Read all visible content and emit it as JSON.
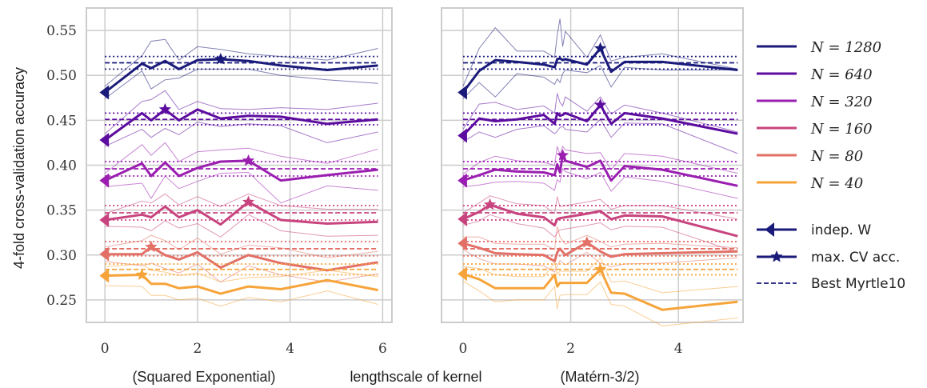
{
  "chart_data": {
    "type": "line",
    "ylabel": "4-fold cross-validation accuracy",
    "xlabel": "lengthscale of kernel",
    "ylim": [
      0.225,
      0.575
    ],
    "yticks": [
      0.25,
      0.3,
      0.35,
      0.4,
      0.45,
      0.5,
      0.55
    ],
    "ytick_labels": [
      "0.25",
      "0.30",
      "0.35",
      "0.40",
      "0.45",
      "0.50",
      "0.55"
    ],
    "grid": true,
    "legend_position": "right",
    "legend_entries": {
      "series_names": [
        "N = 1280",
        "N = 640",
        "N = 320",
        "N = 160",
        "N = 80",
        "N = 40"
      ],
      "indep": "indep. W",
      "maxcv": "max. CV acc.",
      "best": "Best Myrtle10"
    },
    "colors": [
      "#1a1a7a",
      "#5c0d9f",
      "#9a1fb0",
      "#c8447e",
      "#e27066",
      "#f6a43a"
    ],
    "panels": [
      {
        "subtitle": "(Squared Exponential)",
        "xlim": [
          -0.4,
          6.2
        ],
        "xticks": [
          0,
          2,
          4,
          6
        ],
        "xtick_labels": [
          "0",
          "2",
          "4",
          "6"
        ],
        "series": [
          {
            "name": "N = 1280",
            "x": [
              0,
              0.8,
              1.0,
              1.3,
              1.6,
              2.0,
              2.5,
              3.1,
              3.8,
              4.8,
              5.9
            ],
            "values": [
              0.481,
              0.513,
              0.508,
              0.516,
              0.507,
              0.517,
              0.518,
              0.516,
              0.511,
              0.506,
              0.511
            ],
            "upper": [
              0.488,
              0.522,
              0.538,
              0.54,
              0.517,
              0.532,
              0.529,
              0.524,
              0.521,
              0.517,
              0.53
            ],
            "lower": [
              0.474,
              0.505,
              0.485,
              0.495,
              0.497,
              0.507,
              0.507,
              0.507,
              0.5,
              0.495,
              0.491
            ],
            "best": [
              0.521,
              0.514,
              0.507
            ],
            "indep": 0.481,
            "max": [
              2.5,
              0.518
            ]
          },
          {
            "name": "N = 640",
            "x": [
              0,
              0.8,
              1.0,
              1.3,
              1.6,
              2.0,
              2.5,
              3.1,
              3.8,
              4.8,
              5.9
            ],
            "values": [
              0.428,
              0.458,
              0.45,
              0.462,
              0.45,
              0.462,
              0.452,
              0.455,
              0.454,
              0.446,
              0.451
            ],
            "upper": [
              0.435,
              0.471,
              0.473,
              0.483,
              0.462,
              0.471,
              0.463,
              0.462,
              0.464,
              0.462,
              0.469
            ],
            "lower": [
              0.421,
              0.44,
              0.431,
              0.441,
              0.434,
              0.448,
              0.443,
              0.446,
              0.444,
              0.425,
              0.437
            ],
            "best": [
              0.458,
              0.451,
              0.445
            ],
            "indep": 0.428,
            "max": [
              1.3,
              0.462
            ]
          },
          {
            "name": "N = 320",
            "x": [
              0,
              0.8,
              1.0,
              1.3,
              1.6,
              2.0,
              2.5,
              3.1,
              3.8,
              4.8,
              5.9
            ],
            "values": [
              0.383,
              0.402,
              0.388,
              0.403,
              0.388,
              0.397,
              0.404,
              0.405,
              0.383,
              0.389,
              0.395
            ],
            "upper": [
              0.391,
              0.423,
              0.411,
              0.425,
              0.404,
              0.415,
              0.417,
              0.419,
              0.41,
              0.402,
              0.418
            ],
            "lower": [
              0.376,
              0.38,
              0.363,
              0.388,
              0.374,
              0.382,
              0.391,
              0.392,
              0.358,
              0.377,
              0.372
            ],
            "best": [
              0.404,
              0.396,
              0.388
            ],
            "indep": 0.383,
            "max": [
              3.1,
              0.405
            ]
          },
          {
            "name": "N = 160",
            "x": [
              0,
              0.8,
              1.0,
              1.3,
              1.6,
              2.0,
              2.5,
              3.1,
              3.8,
              4.8,
              5.9
            ],
            "values": [
              0.339,
              0.345,
              0.342,
              0.354,
              0.342,
              0.35,
              0.334,
              0.359,
              0.339,
              0.335,
              0.337
            ],
            "upper": [
              0.346,
              0.36,
              0.358,
              0.368,
              0.356,
              0.365,
              0.354,
              0.368,
              0.355,
              0.351,
              0.351
            ],
            "lower": [
              0.332,
              0.331,
              0.327,
              0.338,
              0.33,
              0.335,
              0.32,
              0.345,
              0.327,
              0.321,
              0.322
            ],
            "best": [
              0.355,
              0.347,
              0.339
            ],
            "indep": 0.339,
            "max": [
              3.1,
              0.359
            ]
          },
          {
            "name": "N = 80",
            "x": [
              0,
              0.8,
              1.0,
              1.3,
              1.6,
              2.0,
              2.5,
              3.1,
              3.8,
              4.8,
              5.9
            ],
            "values": [
              0.301,
              0.301,
              0.309,
              0.3,
              0.295,
              0.303,
              0.286,
              0.3,
              0.291,
              0.283,
              0.292
            ],
            "upper": [
              0.309,
              0.316,
              0.322,
              0.316,
              0.306,
              0.319,
              0.301,
              0.311,
              0.308,
              0.297,
              0.304
            ],
            "lower": [
              0.293,
              0.288,
              0.291,
              0.285,
              0.28,
              0.29,
              0.27,
              0.288,
              0.278,
              0.27,
              0.279
            ],
            "best": [
              0.315,
              0.307,
              0.299
            ],
            "indep": 0.301,
            "max": [
              1.0,
              0.309
            ]
          },
          {
            "name": "N = 40",
            "x": [
              0,
              0.8,
              1.0,
              1.3,
              1.6,
              2.0,
              2.5,
              3.1,
              3.8,
              4.8,
              5.9
            ],
            "values": [
              0.277,
              0.278,
              0.268,
              0.268,
              0.263,
              0.265,
              0.257,
              0.265,
              0.262,
              0.272,
              0.261
            ],
            "upper": [
              0.287,
              0.29,
              0.283,
              0.281,
              0.277,
              0.28,
              0.27,
              0.275,
              0.276,
              0.283,
              0.276
            ],
            "lower": [
              0.266,
              0.265,
              0.255,
              0.255,
              0.25,
              0.252,
              0.243,
              0.253,
              0.248,
              0.26,
              0.245
            ],
            "best": [
              0.29,
              0.284,
              0.278
            ],
            "indep": 0.277,
            "max": [
              0.8,
              0.278
            ]
          }
        ]
      },
      {
        "subtitle": "(Matérn-3/2)",
        "xlim": [
          -0.4,
          5.2
        ],
        "xticks": [
          0,
          2,
          4
        ],
        "xtick_labels": [
          "0",
          "2",
          "4"
        ],
        "series": [
          {
            "name": "N = 1280",
            "x": [
              0,
              0.3,
              0.6,
              1.0,
              1.5,
              1.7,
              1.75,
              1.8,
              1.85,
              1.9,
              2.3,
              2.55,
              2.75,
              3.0,
              3.7,
              5.1
            ],
            "values": [
              0.481,
              0.505,
              0.517,
              0.515,
              0.512,
              0.509,
              0.518,
              0.519,
              0.517,
              0.518,
              0.512,
              0.53,
              0.504,
              0.515,
              0.515,
              0.506
            ],
            "upper": [
              0.488,
              0.53,
              0.553,
              0.527,
              0.527,
              0.52,
              0.545,
              0.563,
              0.532,
              0.549,
              0.52,
              0.545,
              0.516,
              0.52,
              0.524,
              0.507
            ],
            "lower": [
              0.474,
              0.492,
              0.476,
              0.502,
              0.498,
              0.49,
              0.496,
              0.492,
              0.502,
              0.506,
              0.503,
              0.511,
              0.487,
              0.509,
              0.506,
              0.506
            ],
            "best": [
              0.521,
              0.514,
              0.507
            ],
            "indep": 0.481,
            "max": [
              2.55,
              0.53
            ]
          },
          {
            "name": "N = 640",
            "x": [
              0,
              0.3,
              0.6,
              1.0,
              1.5,
              1.7,
              1.75,
              1.8,
              1.85,
              1.9,
              2.3,
              2.55,
              2.75,
              3.0,
              3.7,
              5.1
            ],
            "values": [
              0.433,
              0.452,
              0.449,
              0.451,
              0.456,
              0.446,
              0.458,
              0.455,
              0.456,
              0.458,
              0.449,
              0.467,
              0.446,
              0.458,
              0.452,
              0.435
            ],
            "upper": [
              0.44,
              0.468,
              0.47,
              0.462,
              0.466,
              0.458,
              0.48,
              0.47,
              0.466,
              0.476,
              0.46,
              0.476,
              0.457,
              0.467,
              0.458,
              0.437
            ],
            "lower": [
              0.426,
              0.437,
              0.431,
              0.44,
              0.444,
              0.435,
              0.438,
              0.442,
              0.443,
              0.44,
              0.437,
              0.451,
              0.431,
              0.447,
              0.446,
              0.413
            ],
            "best": [
              0.458,
              0.451,
              0.445
            ],
            "indep": 0.433,
            "max": [
              2.55,
              0.467
            ]
          },
          {
            "name": "N = 320",
            "x": [
              0,
              0.3,
              0.6,
              1.0,
              1.5,
              1.7,
              1.75,
              1.8,
              1.85,
              1.9,
              2.3,
              2.55,
              2.75,
              3.0,
              3.7,
              5.1
            ],
            "values": [
              0.383,
              0.389,
              0.395,
              0.393,
              0.392,
              0.389,
              0.401,
              0.392,
              0.411,
              0.405,
              0.398,
              0.405,
              0.383,
              0.399,
              0.395,
              0.377
            ],
            "upper": [
              0.39,
              0.403,
              0.41,
              0.405,
              0.403,
              0.4,
              0.421,
              0.412,
              0.421,
              0.417,
              0.413,
              0.414,
              0.395,
              0.413,
              0.41,
              0.391
            ],
            "lower": [
              0.376,
              0.378,
              0.381,
              0.382,
              0.38,
              0.372,
              0.384,
              0.381,
              0.396,
              0.393,
              0.385,
              0.392,
              0.371,
              0.387,
              0.382,
              0.363
            ],
            "best": [
              0.404,
              0.396,
              0.388
            ],
            "indep": 0.383,
            "max": [
              1.85,
              0.411
            ]
          },
          {
            "name": "N = 160",
            "x": [
              0,
              0.3,
              0.5,
              1.0,
              1.5,
              1.7,
              1.75,
              1.8,
              1.9,
              2.3,
              2.55,
              2.75,
              3.0,
              3.7,
              5.1
            ],
            "values": [
              0.34,
              0.348,
              0.356,
              0.346,
              0.342,
              0.333,
              0.34,
              0.341,
              0.342,
              0.346,
              0.349,
              0.34,
              0.344,
              0.343,
              0.321
            ],
            "upper": [
              0.347,
              0.358,
              0.366,
              0.357,
              0.355,
              0.346,
              0.365,
              0.354,
              0.355,
              0.359,
              0.362,
              0.351,
              0.355,
              0.355,
              0.34
            ],
            "lower": [
              0.333,
              0.338,
              0.345,
              0.335,
              0.33,
              0.32,
              0.325,
              0.328,
              0.329,
              0.333,
              0.336,
              0.328,
              0.332,
              0.331,
              0.303
            ],
            "best": [
              0.355,
              0.347,
              0.339
            ],
            "indep": 0.34,
            "max": [
              0.5,
              0.356
            ]
          },
          {
            "name": "N = 80",
            "x": [
              0,
              0.3,
              0.6,
              1.0,
              1.5,
              1.7,
              1.75,
              1.8,
              1.9,
              2.3,
              2.55,
              2.75,
              3.0,
              3.7,
              5.1
            ],
            "values": [
              0.313,
              0.308,
              0.302,
              0.301,
              0.3,
              0.293,
              0.303,
              0.307,
              0.3,
              0.314,
              0.304,
              0.298,
              0.301,
              0.302,
              0.304
            ],
            "upper": [
              0.32,
              0.32,
              0.313,
              0.312,
              0.312,
              0.306,
              0.332,
              0.32,
              0.312,
              0.322,
              0.315,
              0.309,
              0.312,
              0.313,
              0.308
            ],
            "lower": [
              0.306,
              0.296,
              0.29,
              0.29,
              0.288,
              0.281,
              0.288,
              0.294,
              0.289,
              0.303,
              0.291,
              0.287,
              0.29,
              0.291,
              0.297
            ],
            "best": [
              0.315,
              0.307,
              0.299
            ],
            "indep": 0.313,
            "max": [
              2.3,
              0.314
            ]
          },
          {
            "name": "N = 40",
            "x": [
              0,
              0.3,
              0.6,
              1.0,
              1.5,
              1.7,
              1.75,
              1.8,
              1.9,
              2.3,
              2.55,
              2.75,
              3.0,
              3.7,
              5.1
            ],
            "values": [
              0.279,
              0.273,
              0.263,
              0.263,
              0.263,
              0.278,
              0.265,
              0.269,
              0.269,
              0.269,
              0.284,
              0.258,
              0.257,
              0.239,
              0.248
            ],
            "upper": [
              0.287,
              0.285,
              0.278,
              0.276,
              0.276,
              0.291,
              0.279,
              0.282,
              0.282,
              0.282,
              0.297,
              0.27,
              0.271,
              0.258,
              0.265
            ],
            "lower": [
              0.271,
              0.26,
              0.248,
              0.25,
              0.25,
              0.265,
              0.24,
              0.255,
              0.256,
              0.256,
              0.27,
              0.245,
              0.243,
              0.221,
              0.23
            ],
            "best": [
              0.29,
              0.284,
              0.278
            ],
            "indep": 0.279,
            "max": [
              2.55,
              0.284
            ]
          }
        ]
      }
    ]
  }
}
